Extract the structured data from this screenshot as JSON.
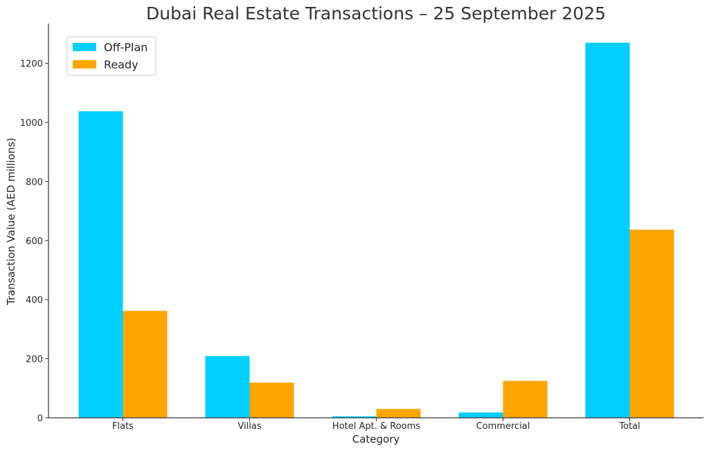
{
  "chart_data": {
    "type": "bar",
    "title": "Dubai Real Estate Transactions – 25 September 2025",
    "xlabel": "Category",
    "ylabel": "Transaction Value (AED millions)",
    "categories": [
      "Flats",
      "Villas",
      "Hotel Apt. & Rooms",
      "Commercial",
      "Total"
    ],
    "series": [
      {
        "name": "Off-Plan",
        "color": "#00cfff",
        "values": [
          1038,
          209,
          5,
          18,
          1270
        ]
      },
      {
        "name": "Ready",
        "color": "#ffa500",
        "values": [
          362,
          119,
          30,
          125,
          637
        ]
      }
    ],
    "yticks": [
      0,
      200,
      400,
      600,
      800,
      1000,
      1200
    ],
    "ylim": [
      0,
      1335
    ],
    "grid": false,
    "legend_position": "top-left"
  }
}
